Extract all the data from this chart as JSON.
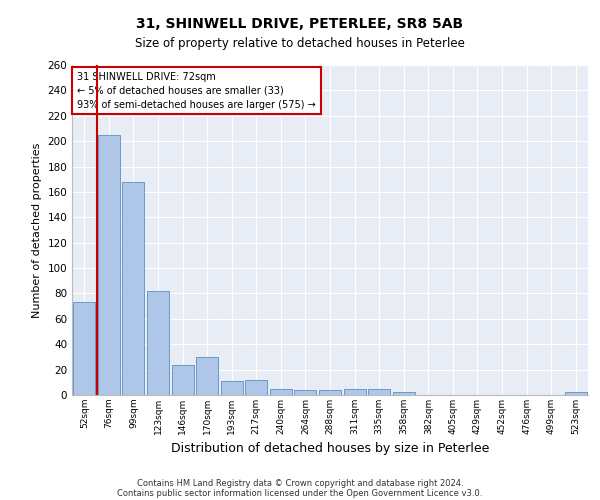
{
  "title1": "31, SHINWELL DRIVE, PETERLEE, SR8 5AB",
  "title2": "Size of property relative to detached houses in Peterlee",
  "xlabel": "Distribution of detached houses by size in Peterlee",
  "ylabel": "Number of detached properties",
  "bins": [
    "52sqm",
    "76sqm",
    "99sqm",
    "123sqm",
    "146sqm",
    "170sqm",
    "193sqm",
    "217sqm",
    "240sqm",
    "264sqm",
    "288sqm",
    "311sqm",
    "335sqm",
    "358sqm",
    "382sqm",
    "405sqm",
    "429sqm",
    "452sqm",
    "476sqm",
    "499sqm",
    "523sqm"
  ],
  "values": [
    73,
    205,
    168,
    82,
    24,
    30,
    11,
    12,
    5,
    4,
    4,
    5,
    5,
    2,
    0,
    0,
    0,
    0,
    0,
    0,
    2
  ],
  "bar_color": "#aec6e8",
  "bar_edge_color": "#5a8fc0",
  "vline_color": "#cc0000",
  "annotation_lines": [
    "31 SHINWELL DRIVE: 72sqm",
    "← 5% of detached houses are smaller (33)",
    "93% of semi-detached houses are larger (575) →"
  ],
  "annotation_box_color": "#cc0000",
  "ylim": [
    0,
    260
  ],
  "yticks": [
    0,
    20,
    40,
    60,
    80,
    100,
    120,
    140,
    160,
    180,
    200,
    220,
    240,
    260
  ],
  "plot_bg_color": "#e8edf5",
  "footer1": "Contains HM Land Registry data © Crown copyright and database right 2024.",
  "footer2": "Contains public sector information licensed under the Open Government Licence v3.0."
}
